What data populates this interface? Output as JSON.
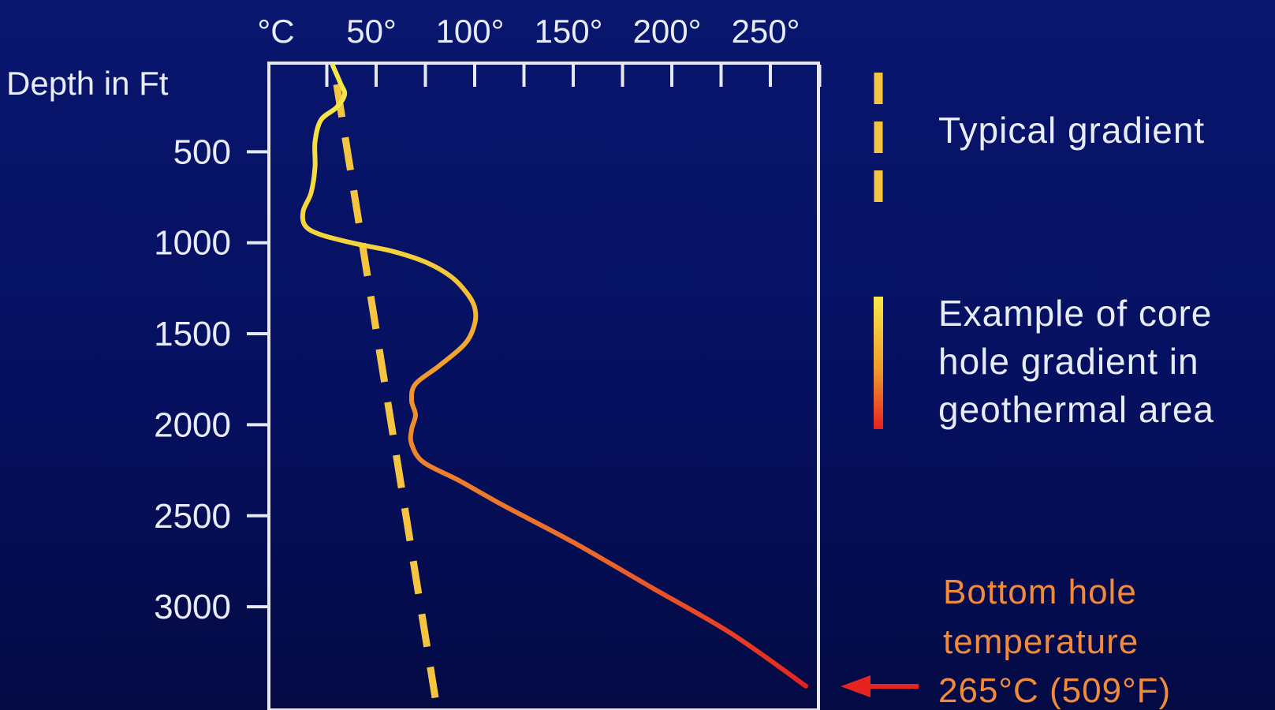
{
  "chart_data": {
    "type": "line",
    "x_unit_label": "°C",
    "x_ticks": [
      "50°",
      "100°",
      "150°",
      "200°",
      "250°"
    ],
    "x_tick_values": [
      50,
      100,
      150,
      200,
      250
    ],
    "x_minor_ticks": [
      25,
      75,
      125,
      175,
      225,
      275
    ],
    "xlim": [
      0,
      280
    ],
    "ylabel": "Depth in Ft",
    "y_ticks": [
      "500",
      "1000",
      "1500",
      "2000",
      "2500",
      "3000"
    ],
    "y_tick_values": [
      500,
      1000,
      1500,
      2000,
      2500,
      3000
    ],
    "ylim": [
      0,
      3500
    ],
    "y_inverted": true,
    "series": [
      {
        "name": "Typical gradient",
        "style": "dashed",
        "color": "#f5c542",
        "points": [
          [
            30,
            0
          ],
          [
            80,
            3500
          ]
        ]
      },
      {
        "name": "Example of core hole gradient in geothermal area",
        "style": "solid",
        "colors": [
          "#f7e94a",
          "#f09a2c",
          "#e5231f"
        ],
        "points": [
          [
            28,
            0
          ],
          [
            32,
            100
          ],
          [
            34,
            160
          ],
          [
            30,
            230
          ],
          [
            22,
            300
          ],
          [
            19,
            420
          ],
          [
            19,
            560
          ],
          [
            17,
            700
          ],
          [
            13,
            800
          ],
          [
            14,
            880
          ],
          [
            22,
            930
          ],
          [
            40,
            980
          ],
          [
            58,
            1020
          ],
          [
            75,
            1080
          ],
          [
            88,
            1160
          ],
          [
            96,
            1250
          ],
          [
            100,
            1330
          ],
          [
            100,
            1420
          ],
          [
            95,
            1530
          ],
          [
            82,
            1650
          ],
          [
            70,
            1750
          ],
          [
            68,
            1840
          ],
          [
            70,
            1920
          ],
          [
            68,
            2000
          ],
          [
            68,
            2080
          ],
          [
            74,
            2180
          ],
          [
            92,
            2280
          ],
          [
            115,
            2420
          ],
          [
            150,
            2620
          ],
          [
            190,
            2870
          ],
          [
            230,
            3120
          ],
          [
            268,
            3410
          ]
        ]
      }
    ],
    "legend": [
      {
        "label": "Typical gradient",
        "color": "#f7f8fc"
      },
      {
        "label": "Example of core hole gradient in geothermal area",
        "lines": [
          "Example of core",
          "hole gradient in",
          "geothermal area"
        ],
        "color": "#f7f8fc"
      }
    ],
    "annotation": {
      "lines": [
        "Bottom hole",
        "temperature",
        "265°C (509°F)"
      ],
      "color": "#f28a3a",
      "arrow_color": "#e5231f",
      "points_to_depth": 3410
    },
    "frame_color": "#e6e8f2",
    "legend_position": "right"
  }
}
